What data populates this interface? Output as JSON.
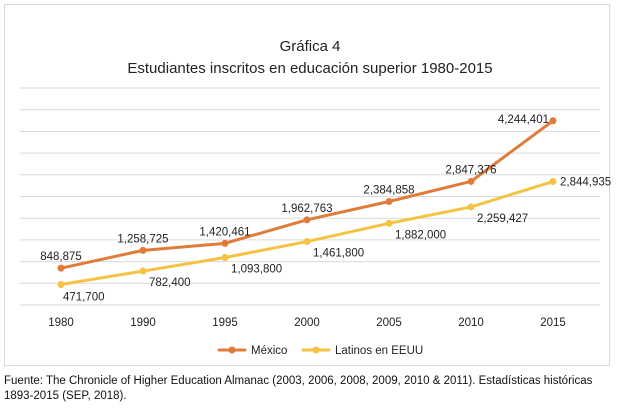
{
  "chart_data": {
    "type": "line",
    "title": "Gráfica 4",
    "subtitle": "Estudiantes inscritos en educación superior 1980-2015",
    "categories": [
      "1980",
      "1990",
      "1995",
      "2000",
      "2005",
      "2010",
      "2015"
    ],
    "series": [
      {
        "name": "México",
        "color": "#E07B39",
        "values": [
          848875,
          1258725,
          1420461,
          1962763,
          2384858,
          2847376,
          4244401
        ],
        "labels": [
          "848,875",
          "1,258,725",
          "1,420,461",
          "1,962,763",
          "2,384,858",
          "2,847,376",
          "4,244,401"
        ]
      },
      {
        "name": "Latinos en EEUU",
        "color": "#F5C244",
        "values": [
          471700,
          782400,
          1093800,
          1461800,
          1882000,
          2259427,
          2844935
        ],
        "labels": [
          "471,700",
          "782,400",
          "1,093,800",
          "1,461,800",
          "1,882,000",
          "2,259,427",
          "2,844,935"
        ]
      }
    ],
    "ylim": [
      0,
      5000000
    ],
    "grid": true,
    "legend": "bottom"
  },
  "source": "Fuente: The Chronicle of Higher Education Almanac (2003, 2006, 2008, 2009, 2010 & 2011). Estadísticas históricas 1893-2015 (SEP, 2018)."
}
